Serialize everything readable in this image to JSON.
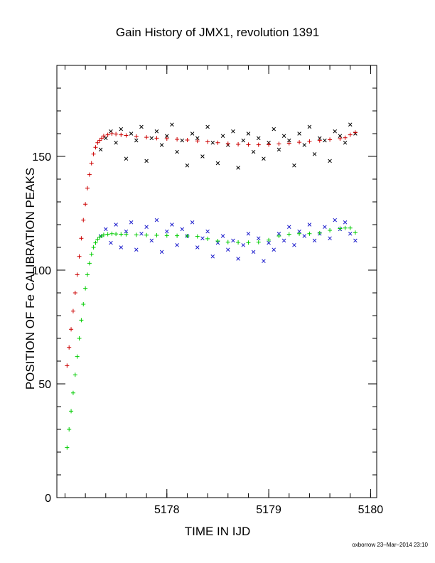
{
  "chart_data": {
    "type": "scatter",
    "title": "Gain History of JMX1, revolution 1391",
    "xlabel": "TIME IN IJD",
    "ylabel": "POSITION OF Fe CALIBRATION PEAKS",
    "xlim": [
      5177.0,
      5180.0
    ],
    "ylim": [
      0,
      190
    ],
    "xticks": [
      5178,
      5179,
      5180
    ],
    "yticks": [
      0,
      50,
      100,
      150
    ],
    "grid": false,
    "series": [
      {
        "marker": "x",
        "color": "#000000",
        "x": [
          5177.35,
          5177.4,
          5177.45,
          5177.5,
          5177.55,
          5177.6,
          5177.65,
          5177.7,
          5177.75,
          5177.8,
          5177.85,
          5177.9,
          5177.95,
          5178.0,
          5178.05,
          5178.1,
          5178.15,
          5178.2,
          5178.25,
          5178.3,
          5178.35,
          5178.4,
          5178.45,
          5178.5,
          5178.55,
          5178.6,
          5178.65,
          5178.7,
          5178.75,
          5178.8,
          5178.85,
          5178.9,
          5178.95,
          5179.0,
          5179.05,
          5179.1,
          5179.15,
          5179.2,
          5179.25,
          5179.3,
          5179.35,
          5179.4,
          5179.45,
          5179.5,
          5179.55,
          5179.6,
          5179.65,
          5179.7,
          5179.75,
          5179.8,
          5179.85
        ],
        "y": [
          153,
          158,
          161,
          156,
          162,
          149,
          160,
          157,
          163,
          148,
          158,
          161,
          155,
          159,
          164,
          152,
          157,
          146,
          160,
          158,
          150,
          163,
          156,
          147,
          159,
          155,
          161,
          145,
          157,
          160,
          152,
          158,
          149,
          156,
          162,
          153,
          159,
          157,
          146,
          160,
          155,
          163,
          151,
          158,
          157,
          148,
          161,
          159,
          156,
          164,
          160
        ]
      },
      {
        "marker": "x",
        "color": "#1a1acc",
        "x": [
          5177.35,
          5177.4,
          5177.45,
          5177.5,
          5177.55,
          5177.6,
          5177.65,
          5177.7,
          5177.75,
          5177.8,
          5177.85,
          5177.9,
          5177.95,
          5178.0,
          5178.05,
          5178.1,
          5178.15,
          5178.2,
          5178.25,
          5178.3,
          5178.35,
          5178.4,
          5178.45,
          5178.5,
          5178.55,
          5178.6,
          5178.65,
          5178.7,
          5178.75,
          5178.8,
          5178.85,
          5178.9,
          5178.95,
          5179.0,
          5179.05,
          5179.1,
          5179.15,
          5179.2,
          5179.25,
          5179.3,
          5179.35,
          5179.4,
          5179.45,
          5179.5,
          5179.55,
          5179.6,
          5179.65,
          5179.7,
          5179.75,
          5179.8,
          5179.85
        ],
        "y": [
          115,
          118,
          112,
          120,
          110,
          117,
          121,
          109,
          116,
          119,
          113,
          122,
          108,
          117,
          120,
          111,
          118,
          115,
          121,
          110,
          114,
          117,
          106,
          112,
          115,
          109,
          113,
          105,
          111,
          116,
          108,
          114,
          104,
          112,
          109,
          116,
          113,
          119,
          111,
          117,
          115,
          120,
          113,
          116,
          119,
          114,
          122,
          118,
          121,
          116,
          113
        ]
      },
      {
        "marker": "+",
        "color": "#cc0000",
        "x": [
          5177.02,
          5177.04,
          5177.06,
          5177.08,
          5177.1,
          5177.12,
          5177.14,
          5177.16,
          5177.18,
          5177.2,
          5177.22,
          5177.24,
          5177.26,
          5177.28,
          5177.3,
          5177.32,
          5177.34,
          5177.36,
          5177.38,
          5177.42,
          5177.46,
          5177.5,
          5177.55,
          5177.6,
          5177.7,
          5177.8,
          5177.9,
          5178.0,
          5178.1,
          5178.2,
          5178.3,
          5178.4,
          5178.5,
          5178.6,
          5178.7,
          5178.8,
          5178.9,
          5179.0,
          5179.1,
          5179.2,
          5179.3,
          5179.4,
          5179.5,
          5179.6,
          5179.7,
          5179.75,
          5179.8,
          5179.85
        ],
        "y": [
          58,
          66,
          74,
          82,
          90,
          98,
          106,
          114,
          122,
          129,
          136,
          142,
          147,
          151,
          154,
          156,
          157,
          158,
          159,
          159.5,
          160,
          159.8,
          159.5,
          159.2,
          158.8,
          158.4,
          158,
          157.8,
          157.5,
          157.2,
          156.8,
          156.4,
          156,
          155.6,
          155.3,
          155.2,
          155.1,
          155.2,
          155.5,
          155.8,
          156.2,
          156.6,
          157,
          157.4,
          157.8,
          158.2,
          159.5,
          160.5
        ]
      },
      {
        "marker": "+",
        "color": "#00cc00",
        "x": [
          5177.02,
          5177.04,
          5177.06,
          5177.08,
          5177.1,
          5177.12,
          5177.14,
          5177.16,
          5177.18,
          5177.2,
          5177.22,
          5177.24,
          5177.26,
          5177.28,
          5177.3,
          5177.32,
          5177.34,
          5177.36,
          5177.38,
          5177.42,
          5177.46,
          5177.5,
          5177.55,
          5177.6,
          5177.7,
          5177.8,
          5177.9,
          5178.0,
          5178.1,
          5178.2,
          5178.3,
          5178.4,
          5178.5,
          5178.6,
          5178.7,
          5178.8,
          5178.9,
          5179.0,
          5179.1,
          5179.2,
          5179.3,
          5179.4,
          5179.5,
          5179.6,
          5179.7,
          5179.75,
          5179.8,
          5179.85
        ],
        "y": [
          22,
          30,
          38,
          46,
          54,
          62,
          70,
          78,
          85,
          92,
          98,
          103,
          107,
          110,
          112,
          113.5,
          114.5,
          115,
          115.5,
          115.8,
          116,
          115.9,
          115.8,
          115.7,
          115.5,
          115.4,
          115.3,
          115.2,
          115.1,
          115,
          114.8,
          113.8,
          112.8,
          112.3,
          112.2,
          112.1,
          112.3,
          113.2,
          115,
          115.8,
          116,
          116,
          116.3,
          117.5,
          118.3,
          118.5,
          118.5,
          116.5
        ]
      }
    ]
  },
  "footer": "oxborrow 23–Mar–2014 23:10"
}
